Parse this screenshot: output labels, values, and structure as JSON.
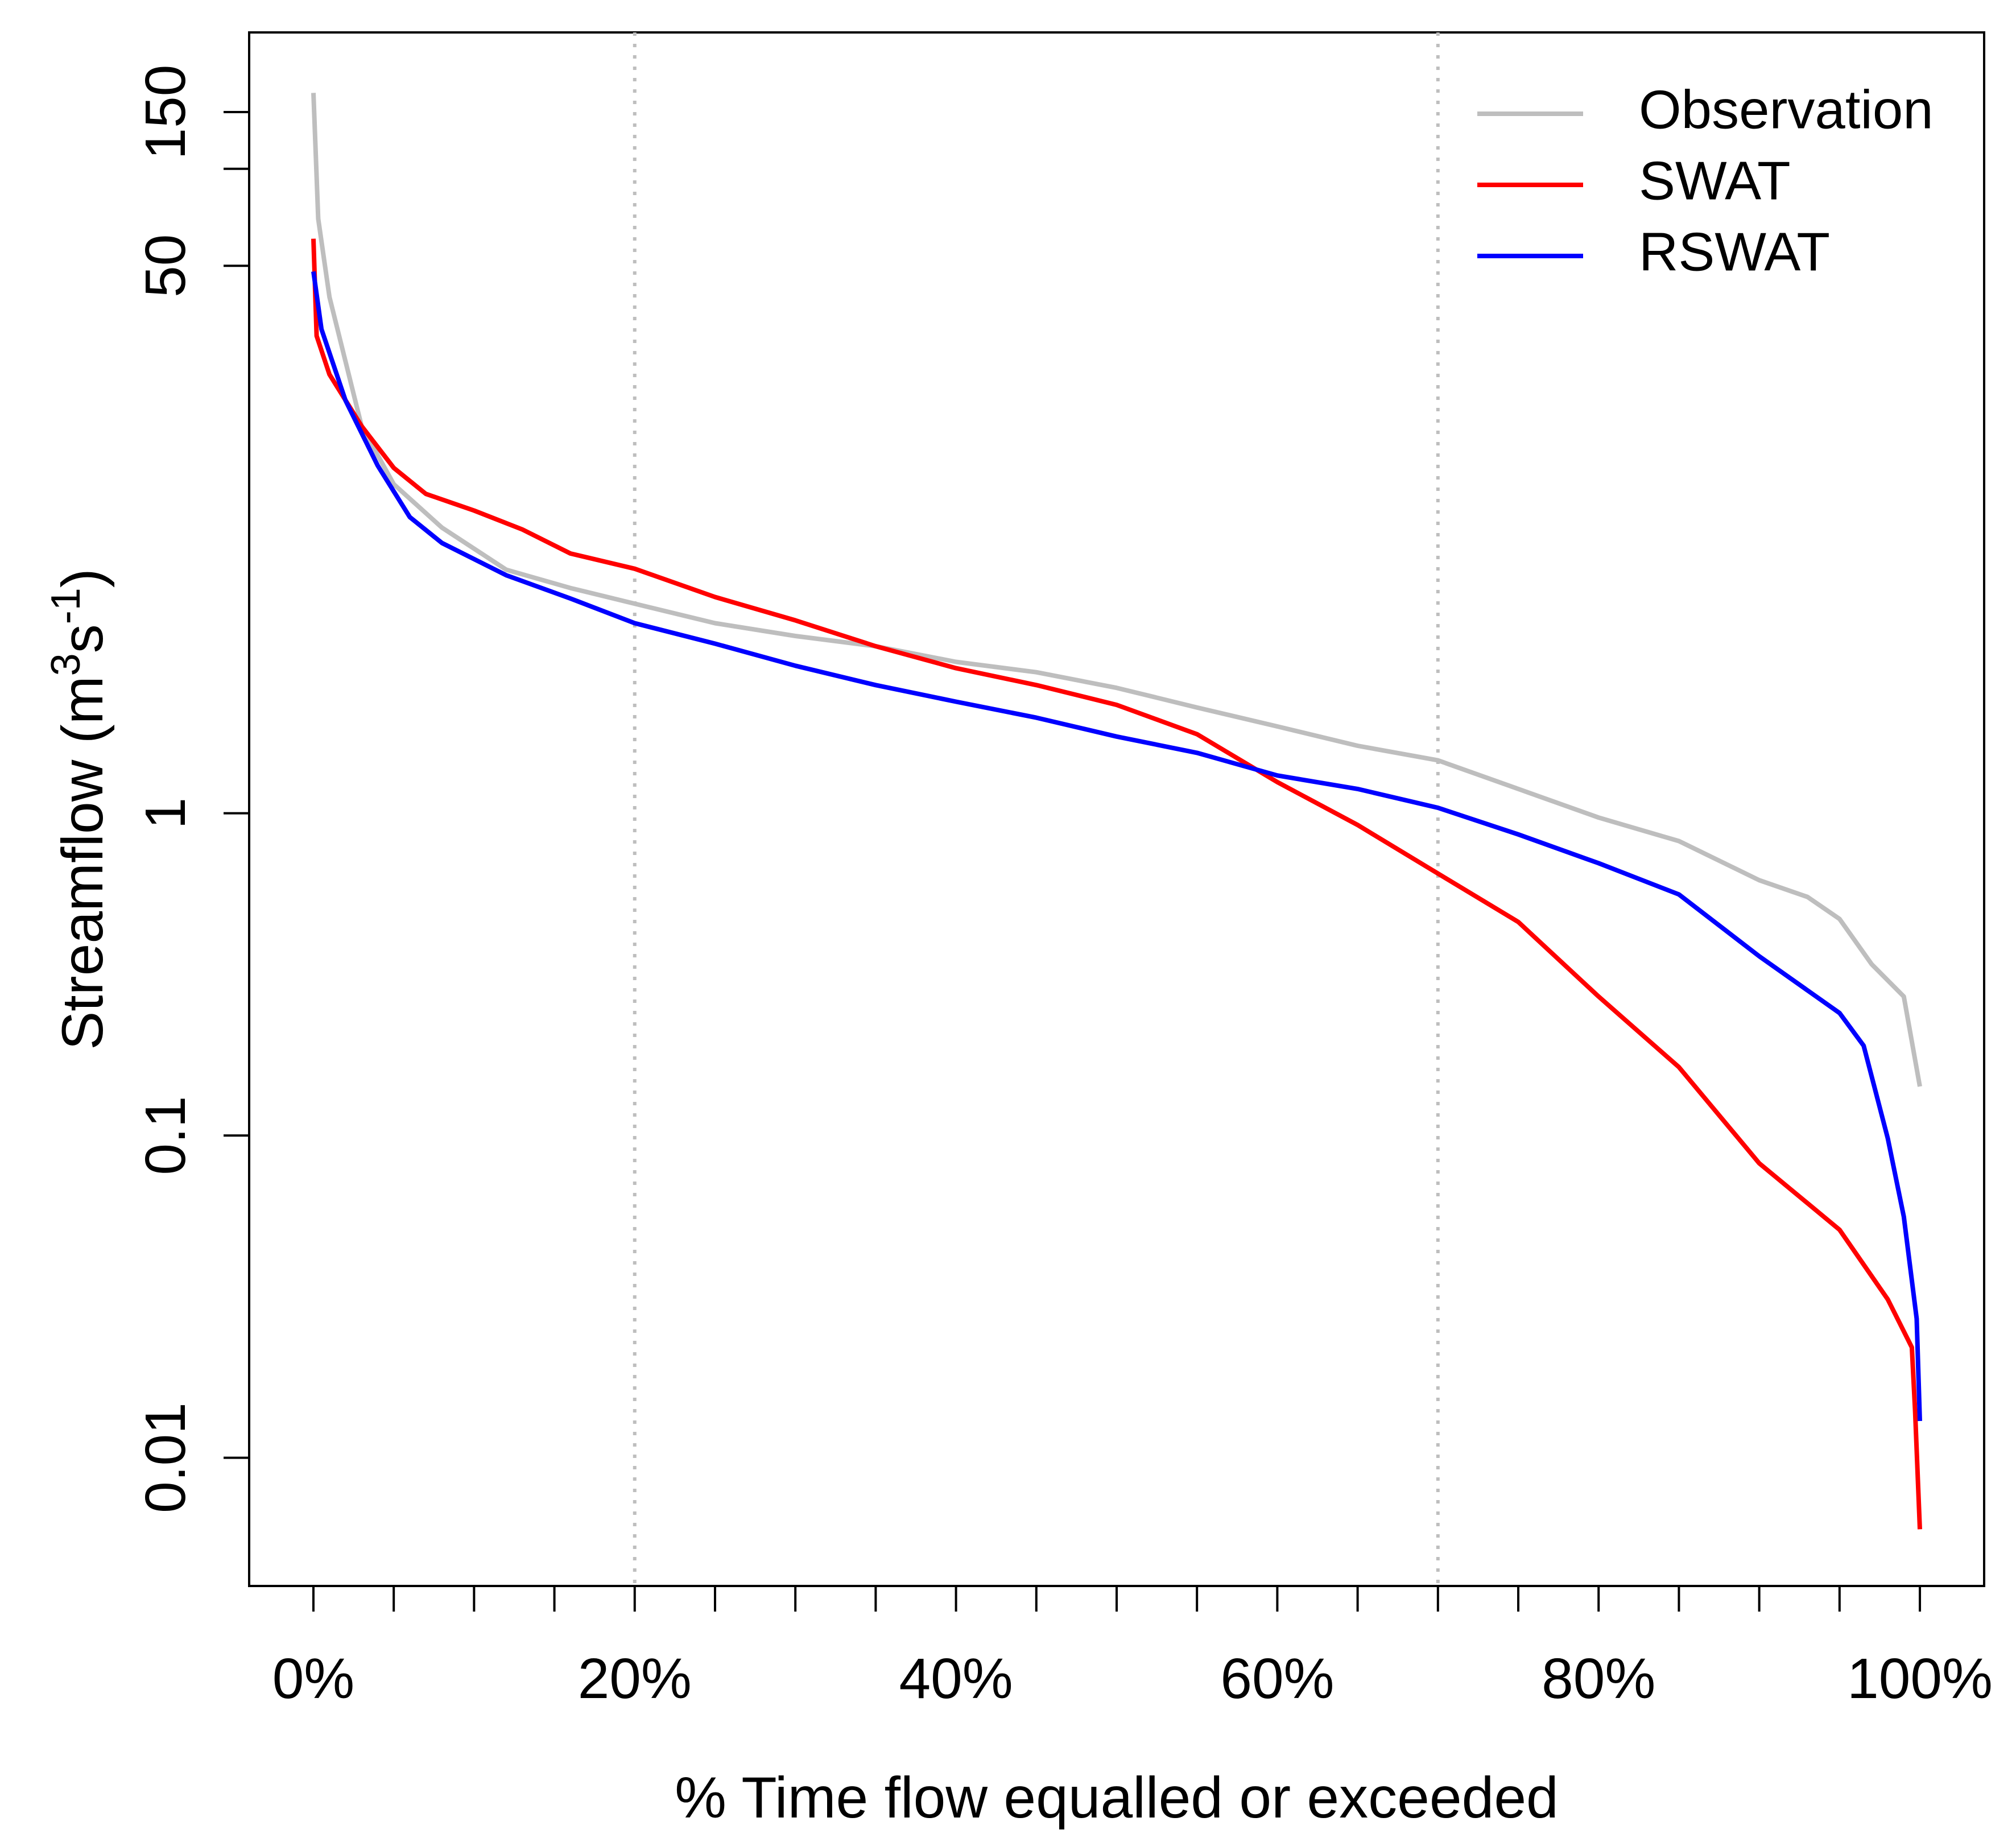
{
  "chart_data": {
    "type": "line",
    "ylabel": [
      {
        "text": "Streamflow  (m"
      },
      {
        "text": "3",
        "sup": true
      },
      {
        "text": "s"
      },
      {
        "text": "-1",
        "sup": true
      },
      {
        "text": ")"
      }
    ],
    "xlabel": "% Time flow equalled or exceeded",
    "log_y": true,
    "xlim": [
      -4,
      104
    ],
    "ylim": [
      0.004,
      265
    ],
    "xticks": [
      {
        "value": 0,
        "label": "0%"
      },
      {
        "value": 20,
        "label": "20%"
      },
      {
        "value": 40,
        "label": "40%"
      },
      {
        "value": 60,
        "label": "60%"
      },
      {
        "value": 80,
        "label": "80%"
      },
      {
        "value": 100,
        "label": "100%"
      }
    ],
    "xminor_ticks": [
      5,
      10,
      15,
      25,
      30,
      35,
      45,
      50,
      55,
      65,
      70,
      75,
      85,
      90,
      95
    ],
    "yticks": [
      0.01,
      0.1,
      1,
      50,
      150
    ],
    "yminor_ticks": [
      100
    ],
    "vlines": [
      20,
      70
    ],
    "vline_color": "#bebebe",
    "legend": "top-right",
    "series": [
      {
        "name": "Observation",
        "color": "#bebebe",
        "x": [
          0,
          0.3,
          1,
          3,
          5,
          8,
          12,
          16,
          20,
          25,
          30,
          35,
          40,
          45,
          50,
          55,
          60,
          65,
          70,
          75,
          80,
          85,
          90,
          93,
          95,
          97,
          99,
          100
        ],
        "values": [
          172,
          70,
          40,
          15.9,
          10.5,
          7.7,
          5.7,
          5.0,
          4.47,
          3.89,
          3.55,
          3.3,
          2.95,
          2.74,
          2.45,
          2.13,
          1.86,
          1.62,
          1.46,
          1.19,
          0.97,
          0.82,
          0.62,
          0.55,
          0.47,
          0.34,
          0.27,
          0.142
        ]
      },
      {
        "name": "SWAT",
        "color": "#ff0000",
        "x": [
          0,
          0.2,
          1,
          3,
          5,
          7,
          10,
          13,
          16,
          20,
          25,
          30,
          35,
          40,
          45,
          50,
          55,
          60,
          65,
          70,
          75,
          80,
          85,
          90,
          95,
          98,
          99.5,
          99.7,
          100
        ],
        "values": [
          60.7,
          30.3,
          23,
          15.9,
          11.8,
          9.8,
          8.7,
          7.6,
          6.4,
          5.74,
          4.69,
          3.97,
          3.3,
          2.82,
          2.5,
          2.17,
          1.76,
          1.25,
          0.92,
          0.65,
          0.46,
          0.27,
          0.163,
          0.082,
          0.051,
          0.031,
          0.022,
          0.014,
          0.006
        ]
      },
      {
        "name": "RSWAT",
        "color": "#0000ff",
        "x": [
          0,
          0.5,
          2,
          4,
          6,
          8,
          12,
          16,
          20,
          25,
          30,
          35,
          40,
          45,
          50,
          55,
          60,
          65,
          70,
          75,
          80,
          85,
          90,
          95,
          96.5,
          98,
          99,
          99.8,
          100
        ],
        "values": [
          48,
          31.8,
          19.1,
          12.0,
          8.3,
          6.9,
          5.48,
          4.64,
          3.89,
          3.36,
          2.87,
          2.5,
          2.22,
          1.98,
          1.73,
          1.54,
          1.31,
          1.19,
          1.04,
          0.86,
          0.7,
          0.56,
          0.36,
          0.24,
          0.19,
          0.098,
          0.056,
          0.027,
          0.013
        ]
      }
    ]
  }
}
